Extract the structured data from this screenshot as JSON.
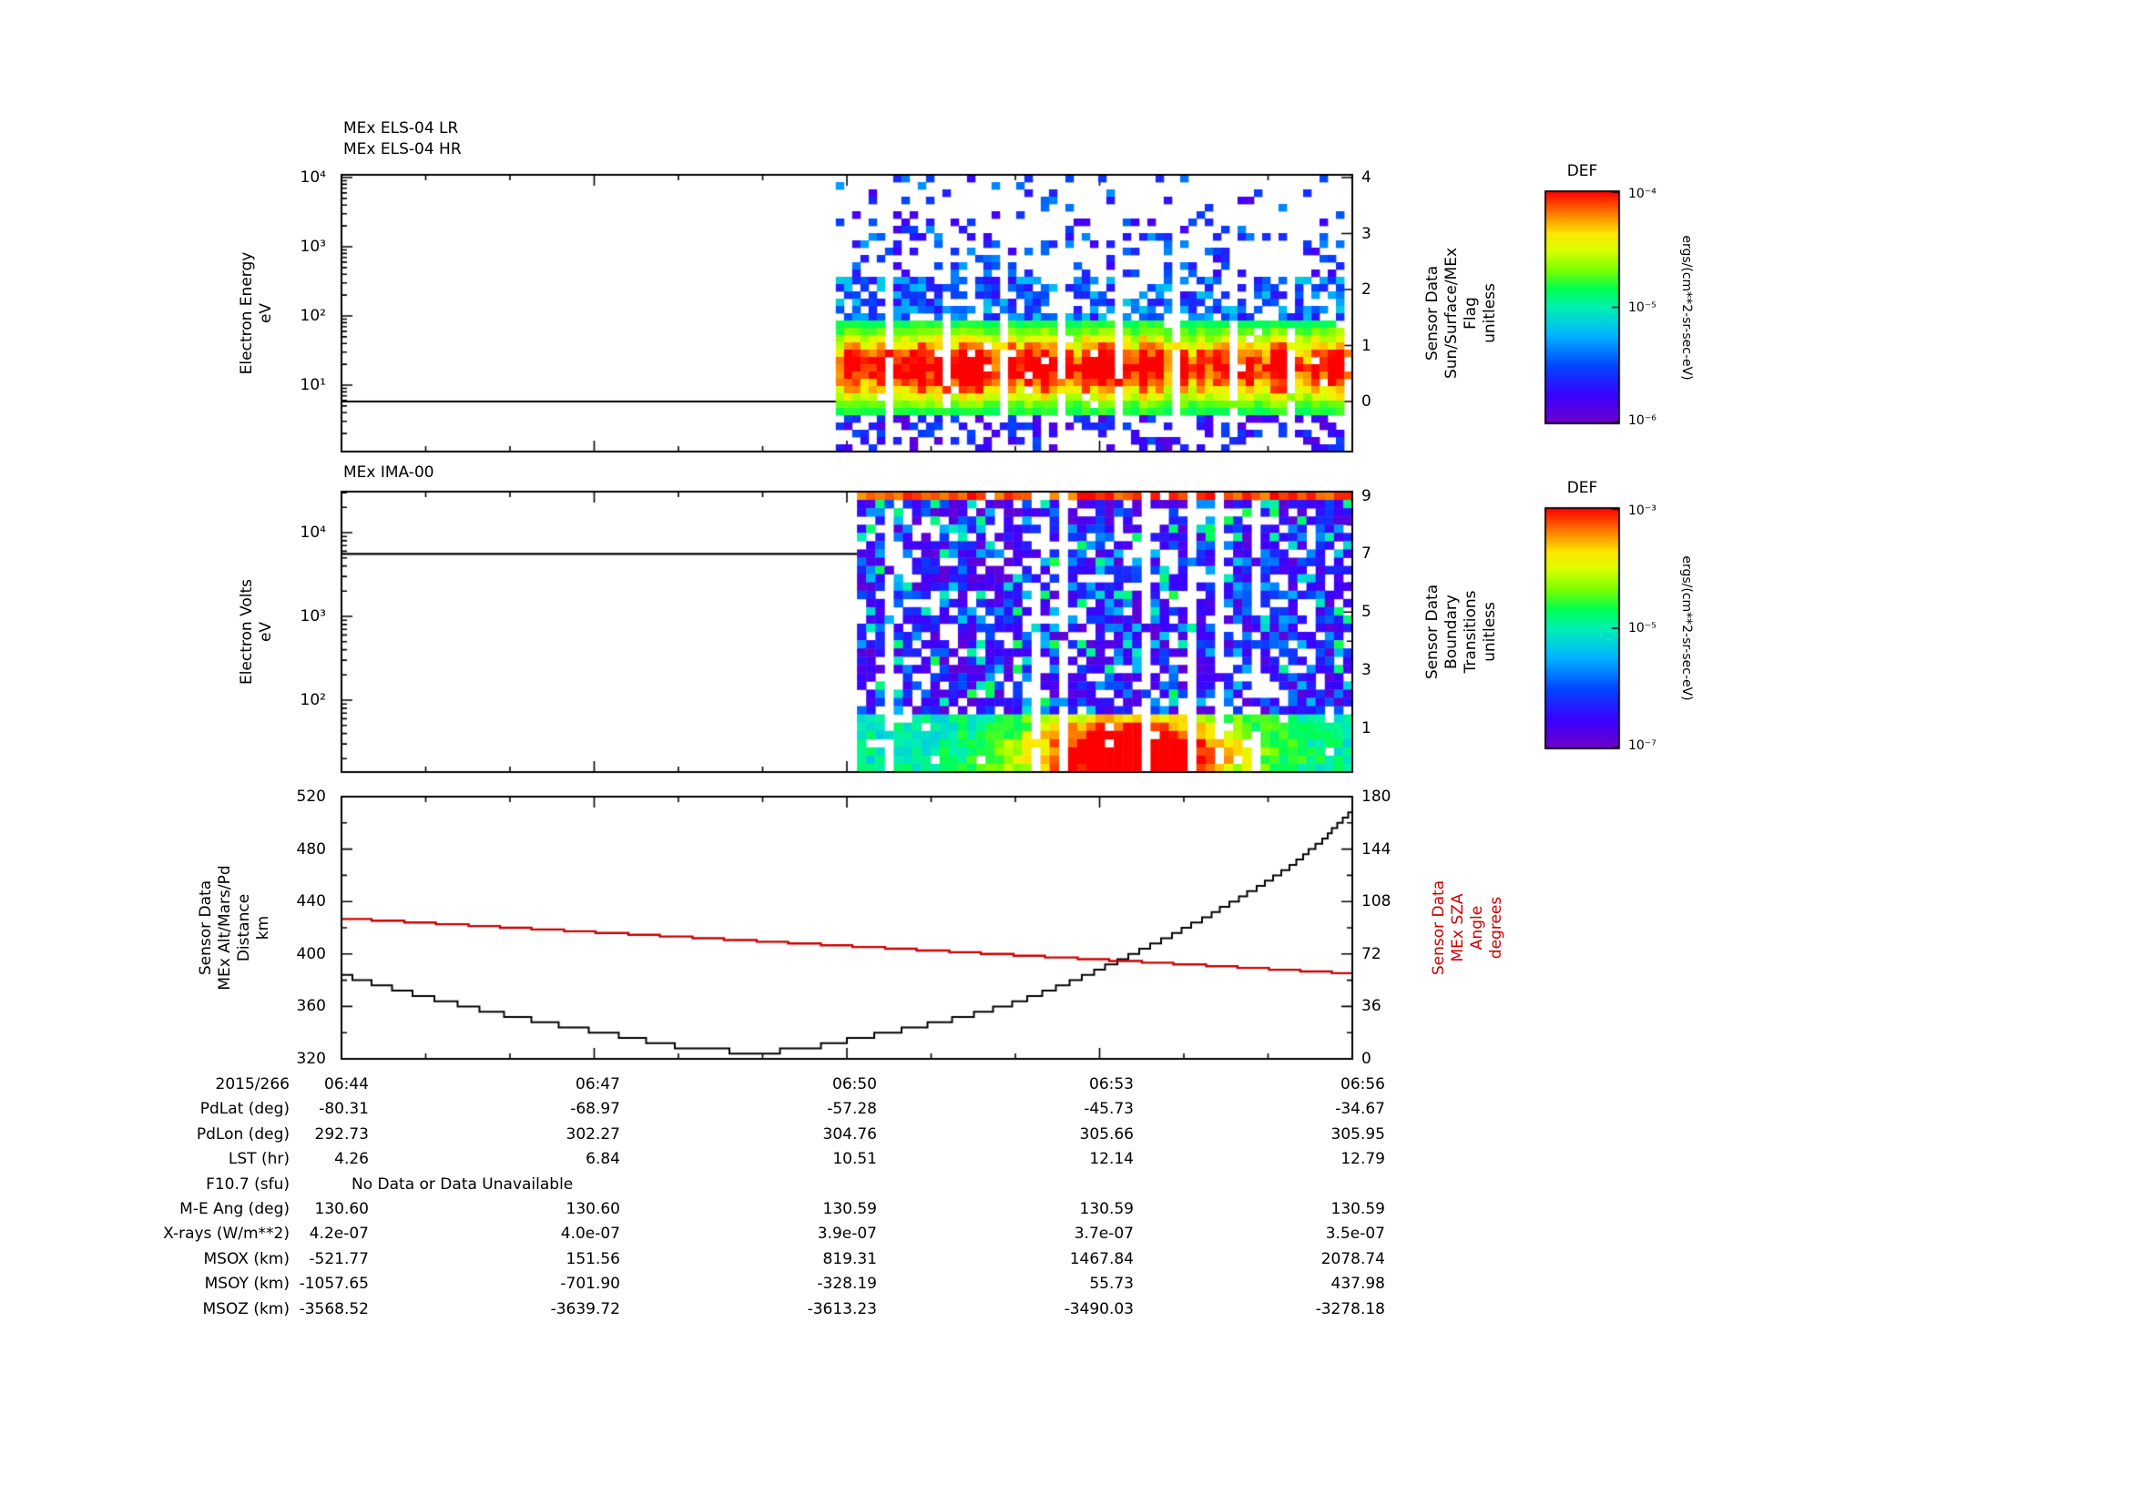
{
  "figure": {
    "background": "#ffffff",
    "accent_red": "#cc0000",
    "date": "2015/266"
  },
  "panels": {
    "els": {
      "title_lr": "MEx ELS-04 LR",
      "title_hr": "MEx ELS-04 HR",
      "ylabel": "Electron Energy\neV",
      "yticks": [
        "10⁴",
        "10³",
        "10²",
        "10¹"
      ],
      "right_label": "Sensor Data\nSun/Surface/MEx\nFlag\nunitless",
      "right_ticks": [
        "4",
        "3",
        "2",
        "1",
        "0"
      ]
    },
    "ima": {
      "title": "MEx IMA-00",
      "ylabel": "Electron Volts\neV",
      "yticks": [
        "10⁴",
        "10³",
        "10²"
      ],
      "right_label": "Sensor Data\nBoundary\nTransitions\nunitless",
      "right_ticks": [
        "9",
        "7",
        "5",
        "3",
        "1"
      ]
    },
    "alt": {
      "ylabel": "Sensor Data\nMEx Alt/Mars/Pd\nDistance\nkm",
      "yticks": [
        "520",
        "480",
        "440",
        "400",
        "360",
        "320"
      ],
      "right_label": "Sensor Data\nMEx SZA\nAngle\ndegrees",
      "right_ticks": [
        "180",
        "144",
        "108",
        "72",
        "36",
        "0"
      ],
      "sza_color": "#cc0000"
    }
  },
  "colorbars": [
    {
      "title": "DEF",
      "ticks": [
        "10⁻⁴",
        "10⁻⁵",
        "10⁻⁶"
      ],
      "unit": "ergs/(cm**2-sr-sec-eV)"
    },
    {
      "title": "DEF",
      "ticks": [
        "10⁻³",
        "10⁻⁵",
        "10⁻⁷"
      ],
      "unit": "ergs/(cm**2-sr-sec-eV)"
    }
  ],
  "table": {
    "date_label": "2015/266",
    "times": [
      "06:44",
      "06:47",
      "06:50",
      "06:53",
      "06:56"
    ],
    "rows": [
      {
        "label": "PdLat (deg)",
        "values": [
          "-80.31",
          "-68.97",
          "-57.28",
          "-45.73",
          "-34.67"
        ]
      },
      {
        "label": "PdLon (deg)",
        "values": [
          "292.73",
          "302.27",
          "304.76",
          "305.66",
          "305.95"
        ]
      },
      {
        "label": "LST (hr)",
        "values": [
          "4.26",
          "6.84",
          "10.51",
          "12.14",
          "12.79"
        ]
      },
      {
        "label": "F10.7 (sfu)",
        "span_text": "No Data or Data Unavailable"
      },
      {
        "label": "M-E Ang (deg)",
        "values": [
          "130.60",
          "130.60",
          "130.59",
          "130.59",
          "130.59"
        ]
      },
      {
        "label": "X-rays (W/m**2)",
        "values": [
          "4.2e-07",
          "4.0e-07",
          "3.9e-07",
          "3.7e-07",
          "3.5e-07"
        ]
      },
      {
        "label": "MSOX (km)",
        "values": [
          "-521.77",
          "151.56",
          "819.31",
          "1467.84",
          "2078.74"
        ]
      },
      {
        "label": "MSOY (km)",
        "values": [
          "-1057.65",
          "-701.90",
          "-328.19",
          "55.73",
          "437.98"
        ]
      },
      {
        "label": "MSOZ (km)",
        "values": [
          "-3568.52",
          "-3639.72",
          "-3613.23",
          "-3490.03",
          "-3278.18"
        ]
      }
    ]
  },
  "chart_data": [
    {
      "type": "heatmap",
      "title": "MEx ELS-04 LR / MEx ELS-04 HR electron energy spectrogram",
      "x_range": [
        "06:44",
        "06:56"
      ],
      "xticks": [
        "06:44",
        "06:47",
        "06:50",
        "06:53",
        "06:56"
      ],
      "y_axis": {
        "label": "Electron Energy (eV)",
        "scale": "log",
        "range": [
          1,
          10000
        ]
      },
      "right_axis": {
        "label": "Sensor Data Sun/Surface/MEx Flag (unitless)",
        "ticks": [
          4,
          3,
          2,
          1,
          0
        ]
      },
      "color_axis": {
        "label": "DEF",
        "unit": "ergs/(cm**2-sr-sec-eV)",
        "scale": "log",
        "range": [
          1e-06,
          0.0001
        ]
      },
      "data_begins": "06:50",
      "flag_overlay_value_before_data": 0,
      "features": [
        "no ELS spectrogram data before ~06:50",
        "intense 5-60 eV flux band (green-yellow-red, up to ~1e-4) from 06:50 to 06:56",
        "sparse low-flux blue/cyan counts from ~100 eV up to 10 keV",
        "periodic narrow white vertical data gaps",
        "black Flag overlay line at value 0 before 06:50"
      ],
      "render": {
        "seed": 1234,
        "x_start_frac": 0.489,
        "cols": 63,
        "rows": 38,
        "gap_period": 7
      }
    },
    {
      "type": "heatmap",
      "title": "MEx IMA-00 spectrogram",
      "x_range": [
        "06:44",
        "06:56"
      ],
      "xticks": [
        "06:44",
        "06:47",
        "06:50",
        "06:53",
        "06:56"
      ],
      "y_axis": {
        "label": "Electron Volts (eV)",
        "scale": "log",
        "range": [
          14,
          31000
        ]
      },
      "right_axis": {
        "label": "Sensor Data Boundary Transitions (unitless)",
        "ticks": [
          9,
          7,
          5,
          3,
          1
        ]
      },
      "color_axis": {
        "label": "DEF",
        "unit": "ergs/(cm**2-sr-sec-eV)",
        "scale": "log",
        "range": [
          1e-07,
          0.001
        ]
      },
      "data_begins": "06:50",
      "boundary_overlay_value_before_data": 7,
      "features": [
        "broadband low-flux violet/blue noise across all energies with white gaps",
        "enhanced low-energy (<100 eV) green band with yellow/red core ~06:52:30-06:54:30",
        "saturated dark-red top energy channel",
        "black Boundary Transitions overlay line at value 7 before 06:50"
      ],
      "render": {
        "seed": 777,
        "x_start_frac": 0.51,
        "cols": 54,
        "rows": 34,
        "gap_prob": 0.07
      }
    },
    {
      "type": "line",
      "x_range": [
        "06:44",
        "06:56"
      ],
      "xticks": [
        "06:44",
        "06:47",
        "06:50",
        "06:53",
        "06:56"
      ],
      "left_axis": {
        "label": "Sensor Data MEx Alt/Mars/Pd Distance (km)",
        "range": [
          320,
          520
        ]
      },
      "right_axis": {
        "label": "Sensor Data MEx SZA Angle (degrees)",
        "range": [
          0,
          180
        ]
      },
      "series": [
        {
          "name": "MEx Alt/Mars/Pd Distance (km)",
          "color": "#000000",
          "axis": "left",
          "x_start_min": 0,
          "x_step_min": 0.4,
          "step_quant": 4,
          "values": [
            384,
            377,
            370.5,
            364.5,
            358.5,
            353,
            348,
            343.5,
            339,
            334,
            329.5,
            326.5,
            325.5,
            326,
            329,
            334,
            339,
            344,
            349.5,
            355.5,
            363,
            372,
            382.5,
            394,
            406,
            419,
            433,
            448,
            464,
            484,
            510
          ]
        },
        {
          "name": "MEx SZA Angle (degrees)",
          "color": "#cc0000",
          "axis": "right",
          "x_start_min": 0,
          "x_step_min": 2,
          "step_quant": 1.2,
          "values": [
            96.5,
            90.2,
            83.9,
            77.6,
            71.3,
            65.0,
            58.6
          ]
        }
      ]
    }
  ]
}
